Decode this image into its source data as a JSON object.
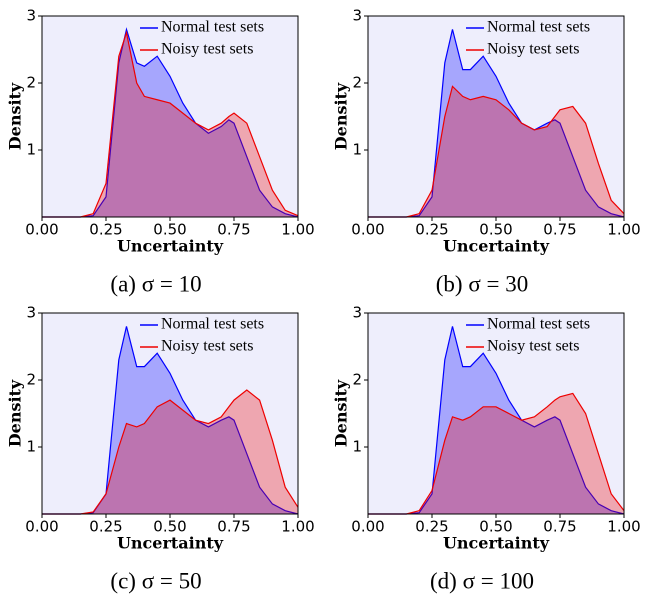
{
  "chart_data": [
    {
      "type": "area",
      "title": "(a) σ = 10",
      "xlabel": "Uncertainty",
      "ylabel": "Density",
      "x": [
        0.0,
        0.15,
        0.2,
        0.25,
        0.3,
        0.33,
        0.37,
        0.4,
        0.45,
        0.5,
        0.55,
        0.6,
        0.65,
        0.7,
        0.73,
        0.75,
        0.8,
        0.85,
        0.9,
        0.95,
        1.0
      ],
      "series": [
        {
          "name": "Normal test sets",
          "color": "#0000ff",
          "values": [
            0,
            0,
            0.02,
            0.3,
            2.3,
            2.8,
            2.3,
            2.25,
            2.4,
            2.1,
            1.7,
            1.4,
            1.25,
            1.35,
            1.45,
            1.4,
            0.9,
            0.4,
            0.15,
            0.05,
            0.0
          ]
        },
        {
          "name": "Noisy test sets",
          "color": "#ee0000",
          "values": [
            0,
            0,
            0.05,
            0.5,
            2.4,
            2.75,
            2.0,
            1.8,
            1.75,
            1.7,
            1.55,
            1.4,
            1.3,
            1.4,
            1.5,
            1.55,
            1.4,
            0.9,
            0.4,
            0.1,
            0.02
          ]
        }
      ],
      "xlim": [
        0,
        1
      ],
      "ylim": [
        0,
        3
      ],
      "xticks": [
        {
          "value": 0,
          "label": "0.00"
        },
        {
          "value": 0.25,
          "label": "0.25"
        },
        {
          "value": 0.5,
          "label": "0.50"
        },
        {
          "value": 0.75,
          "label": "0.75"
        },
        {
          "value": 1,
          "label": "1.00"
        }
      ],
      "yticks": [
        1,
        2,
        3
      ],
      "legend": "upper right"
    },
    {
      "type": "area",
      "title": "(b) σ = 30",
      "xlabel": "Uncertainty",
      "ylabel": "Density",
      "x": [
        0.0,
        0.15,
        0.2,
        0.25,
        0.3,
        0.33,
        0.37,
        0.4,
        0.45,
        0.5,
        0.55,
        0.6,
        0.65,
        0.7,
        0.73,
        0.75,
        0.8,
        0.85,
        0.9,
        0.95,
        1.0
      ],
      "series": [
        {
          "name": "Normal test sets",
          "color": "#0000ff",
          "values": [
            0,
            0,
            0.02,
            0.3,
            2.3,
            2.8,
            2.2,
            2.2,
            2.4,
            2.1,
            1.7,
            1.4,
            1.3,
            1.4,
            1.45,
            1.4,
            0.9,
            0.4,
            0.15,
            0.05,
            0.0
          ]
        },
        {
          "name": "Noisy test sets",
          "color": "#ee0000",
          "values": [
            0,
            0,
            0.05,
            0.4,
            1.5,
            1.95,
            1.8,
            1.75,
            1.8,
            1.75,
            1.6,
            1.4,
            1.3,
            1.35,
            1.5,
            1.6,
            1.65,
            1.4,
            0.8,
            0.25,
            0.05
          ]
        }
      ],
      "xlim": [
        0,
        1
      ],
      "ylim": [
        0,
        3
      ],
      "xticks": [
        {
          "value": 0,
          "label": "0.00"
        },
        {
          "value": 0.25,
          "label": "0.25"
        },
        {
          "value": 0.5,
          "label": "0.50"
        },
        {
          "value": 0.75,
          "label": "0.75"
        },
        {
          "value": 1,
          "label": "1.00"
        }
      ],
      "yticks": [
        1,
        2,
        3
      ],
      "legend": "upper right"
    },
    {
      "type": "area",
      "title": "(c) σ = 50",
      "xlabel": "Uncertainty",
      "ylabel": "Density",
      "x": [
        0.0,
        0.15,
        0.2,
        0.25,
        0.3,
        0.33,
        0.37,
        0.4,
        0.45,
        0.5,
        0.55,
        0.6,
        0.65,
        0.7,
        0.73,
        0.75,
        0.8,
        0.85,
        0.9,
        0.95,
        1.0
      ],
      "series": [
        {
          "name": "Normal test sets",
          "color": "#0000ff",
          "values": [
            0,
            0,
            0.02,
            0.3,
            2.3,
            2.8,
            2.2,
            2.2,
            2.4,
            2.1,
            1.7,
            1.4,
            1.3,
            1.4,
            1.45,
            1.4,
            0.9,
            0.4,
            0.15,
            0.05,
            0.0
          ]
        },
        {
          "name": "Noisy test sets",
          "color": "#ee0000",
          "values": [
            0,
            0,
            0.03,
            0.3,
            1.0,
            1.35,
            1.3,
            1.35,
            1.6,
            1.7,
            1.55,
            1.4,
            1.35,
            1.45,
            1.6,
            1.7,
            1.85,
            1.7,
            1.1,
            0.4,
            0.1
          ]
        }
      ],
      "xlim": [
        0,
        1
      ],
      "ylim": [
        0,
        3
      ],
      "xticks": [
        {
          "value": 0,
          "label": "0.00"
        },
        {
          "value": 0.25,
          "label": "0.25"
        },
        {
          "value": 0.5,
          "label": "0.50"
        },
        {
          "value": 0.75,
          "label": "0.75"
        },
        {
          "value": 1,
          "label": "1.00"
        }
      ],
      "yticks": [
        1,
        2,
        3
      ],
      "legend": "upper right"
    },
    {
      "type": "area",
      "title": "(d) σ = 100",
      "xlabel": "Uncertainty",
      "ylabel": "Density",
      "x": [
        0.0,
        0.15,
        0.2,
        0.25,
        0.3,
        0.33,
        0.37,
        0.4,
        0.45,
        0.5,
        0.55,
        0.6,
        0.65,
        0.7,
        0.73,
        0.75,
        0.8,
        0.85,
        0.9,
        0.95,
        1.0
      ],
      "series": [
        {
          "name": "Normal test sets",
          "color": "#0000ff",
          "values": [
            0,
            0,
            0.02,
            0.3,
            2.3,
            2.8,
            2.2,
            2.2,
            2.4,
            2.1,
            1.7,
            1.4,
            1.3,
            1.4,
            1.45,
            1.4,
            0.9,
            0.4,
            0.15,
            0.05,
            0.0
          ]
        },
        {
          "name": "Noisy test sets",
          "color": "#ee0000",
          "values": [
            0,
            0,
            0.05,
            0.35,
            1.1,
            1.45,
            1.4,
            1.45,
            1.6,
            1.6,
            1.5,
            1.4,
            1.45,
            1.6,
            1.7,
            1.75,
            1.8,
            1.5,
            0.9,
            0.3,
            0.05
          ]
        }
      ],
      "xlim": [
        0,
        1
      ],
      "ylim": [
        0,
        3
      ],
      "xticks": [
        {
          "value": 0,
          "label": "0.00"
        },
        {
          "value": 0.25,
          "label": "0.25"
        },
        {
          "value": 0.5,
          "label": "0.50"
        },
        {
          "value": 0.75,
          "label": "0.75"
        },
        {
          "value": 1,
          "label": "1.00"
        }
      ],
      "yticks": [
        1,
        2,
        3
      ],
      "legend": "upper right"
    }
  ]
}
